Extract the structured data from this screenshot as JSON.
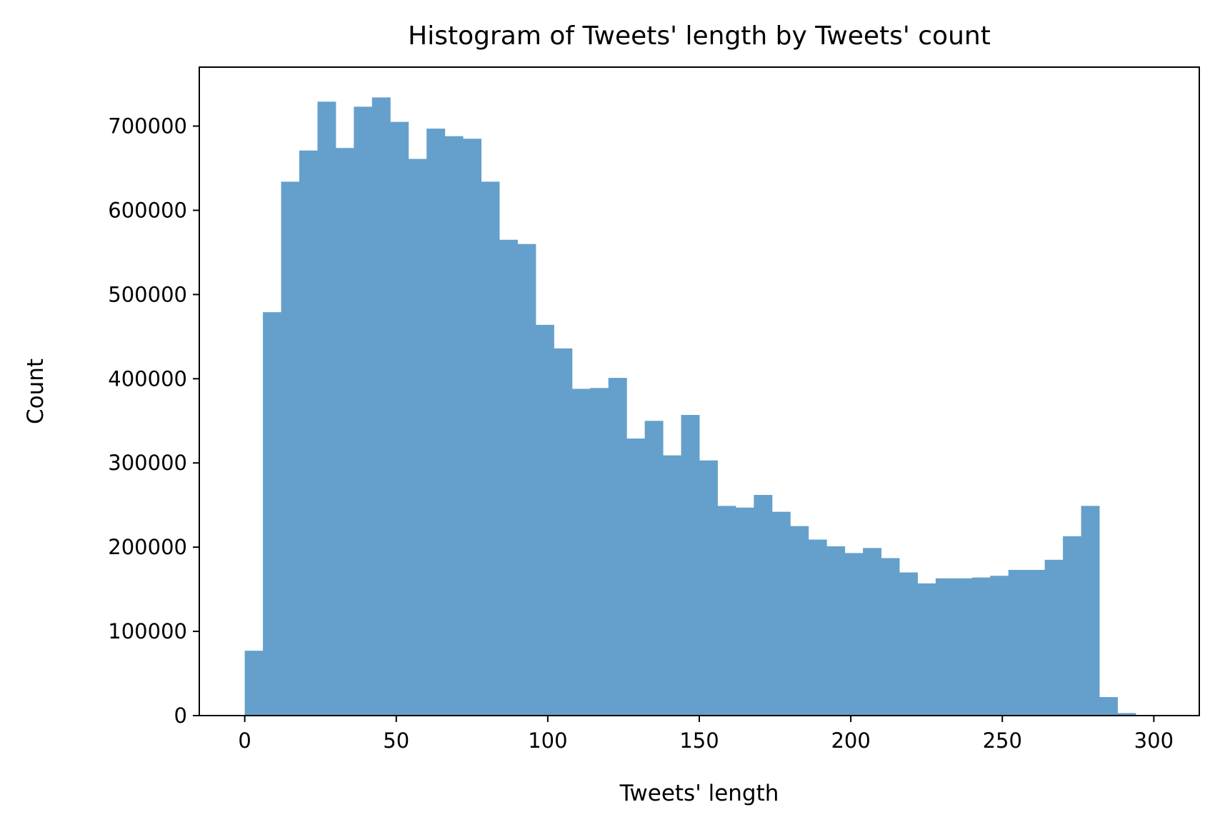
{
  "chart_data": {
    "type": "bar",
    "title": "Histogram of Tweets' length by Tweets' count",
    "xlabel": "Tweets' length",
    "ylabel": "Count",
    "xlim": [
      -15,
      315
    ],
    "ylim": [
      0,
      770000
    ],
    "xticks": [
      0,
      50,
      100,
      150,
      200,
      250,
      300
    ],
    "yticks": [
      0,
      100000,
      200000,
      300000,
      400000,
      500000,
      600000,
      700000
    ],
    "grid": false,
    "legend": "none",
    "bar_color": "#64a0cb",
    "bin_edges": [
      0,
      6,
      12,
      18,
      24,
      30,
      36,
      42,
      48,
      54,
      60,
      66,
      72,
      78,
      84,
      90,
      96,
      102,
      108,
      114,
      120,
      126,
      132,
      138,
      144,
      150,
      156,
      162,
      168,
      174,
      180,
      186,
      192,
      198,
      204,
      210,
      216,
      222,
      228,
      234,
      240,
      246,
      252,
      258,
      264,
      270,
      276,
      282,
      288,
      294
    ],
    "values": [
      77000,
      479000,
      634000,
      671000,
      729000,
      674000,
      723000,
      734000,
      705000,
      661000,
      697000,
      688000,
      685000,
      634000,
      565000,
      560000,
      464000,
      436000,
      388000,
      389000,
      401000,
      329000,
      350000,
      309000,
      357000,
      303000,
      249000,
      247000,
      262000,
      242000,
      225000,
      209000,
      201000,
      193000,
      199000,
      187000,
      170000,
      157000,
      163000,
      163000,
      164000,
      166000,
      173000,
      173000,
      185000,
      213000,
      249000,
      22000,
      3000
    ]
  }
}
